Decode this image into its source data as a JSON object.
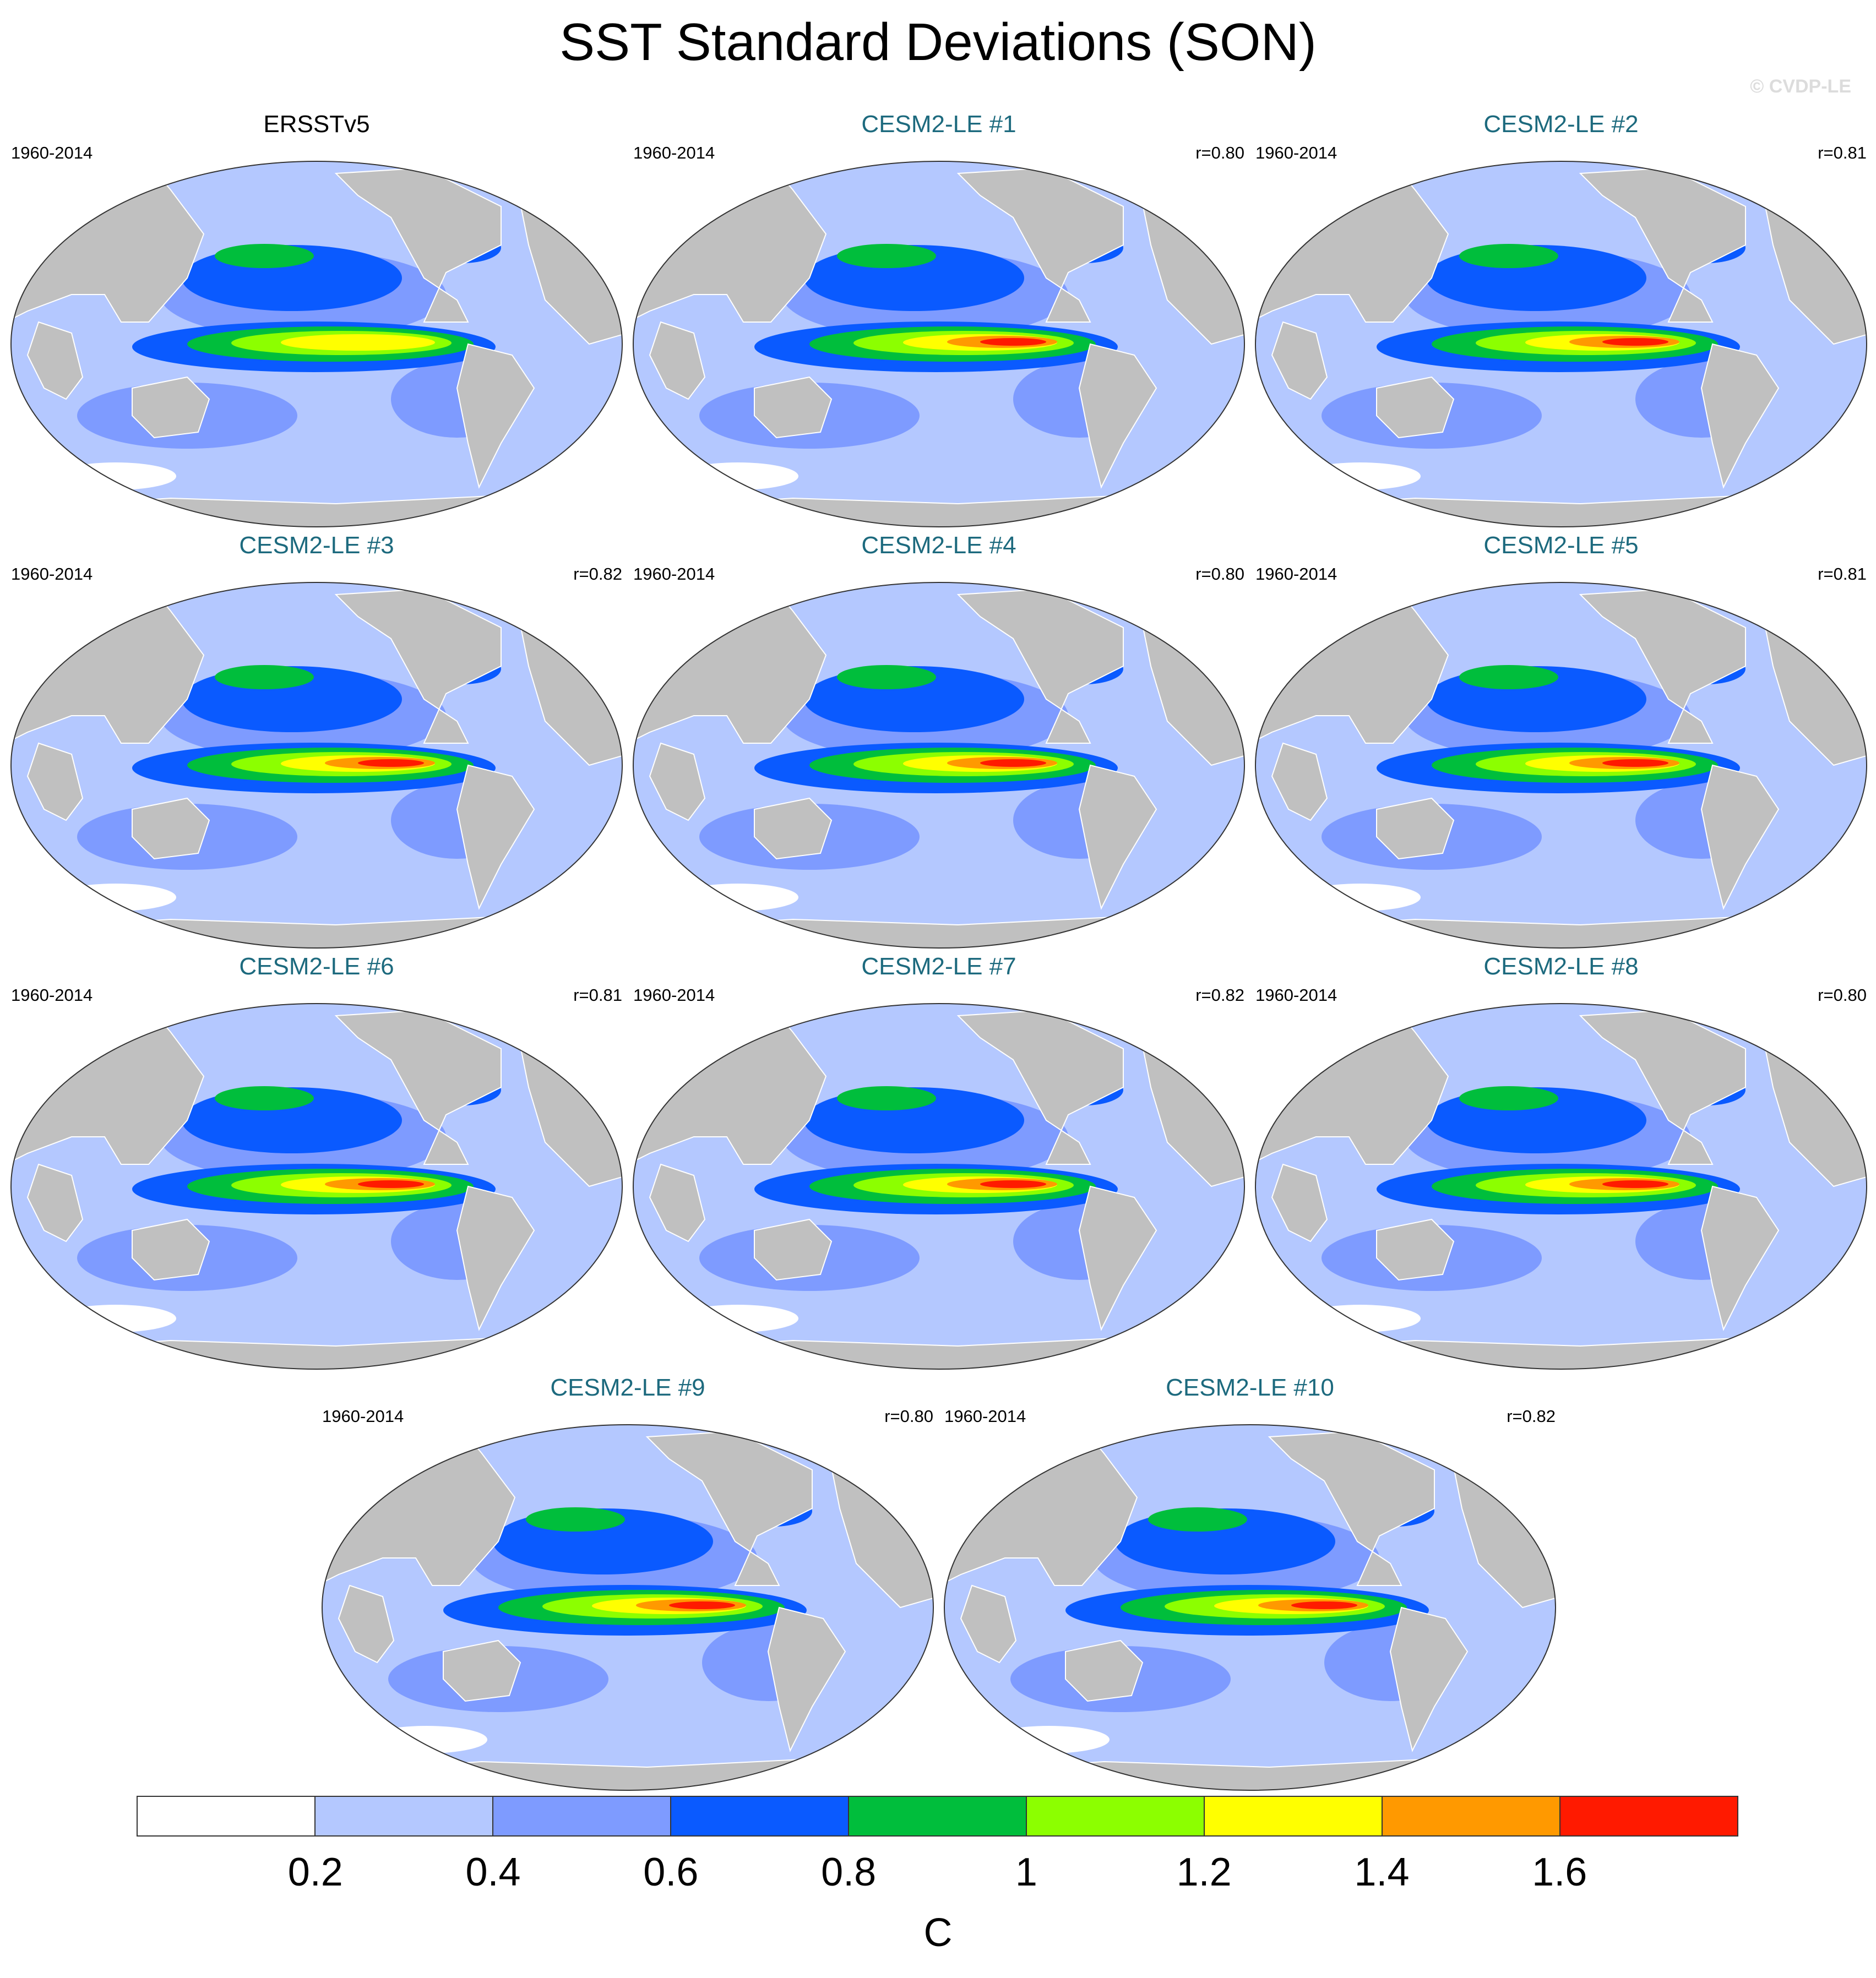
{
  "title": "SST Standard Deviations (SON)",
  "watermark": "© CVDP-LE",
  "colors": {
    "land": "#c0c0c0",
    "ocean_bins": [
      "#ffffff",
      "#b4c8ff",
      "#7e9bff",
      "#0a5aff",
      "#00be3c",
      "#8cff00",
      "#ffff00",
      "#ff9900",
      "#ff1a00"
    ]
  },
  "panels": [
    {
      "title": "ERSSTv5",
      "type": "obs",
      "period": "1960-2014",
      "r": ""
    },
    {
      "title": "CESM2-LE #1",
      "type": "model",
      "period": "1960-2014",
      "r": "r=0.80"
    },
    {
      "title": "CESM2-LE #2",
      "type": "model",
      "period": "1960-2014",
      "r": "r=0.81"
    },
    {
      "title": "CESM2-LE #3",
      "type": "model",
      "period": "1960-2014",
      "r": "r=0.82"
    },
    {
      "title": "CESM2-LE #4",
      "type": "model",
      "period": "1960-2014",
      "r": "r=0.80"
    },
    {
      "title": "CESM2-LE #5",
      "type": "model",
      "period": "1960-2014",
      "r": "r=0.81"
    },
    {
      "title": "CESM2-LE #6",
      "type": "model",
      "period": "1960-2014",
      "r": "r=0.81"
    },
    {
      "title": "CESM2-LE #7",
      "type": "model",
      "period": "1960-2014",
      "r": "r=0.82"
    },
    {
      "title": "CESM2-LE #8",
      "type": "model",
      "period": "1960-2014",
      "r": "r=0.80"
    },
    {
      "title": "CESM2-LE #9",
      "type": "model",
      "period": "1960-2014",
      "r": "r=0.80"
    },
    {
      "title": "CESM2-LE #10",
      "type": "model",
      "period": "1960-2014",
      "r": "r=0.82"
    }
  ],
  "colorbar": {
    "ticks": [
      "0.2",
      "0.4",
      "0.6",
      "0.8",
      "1",
      "1.2",
      "1.4",
      "1.6"
    ],
    "units": "C"
  }
}
